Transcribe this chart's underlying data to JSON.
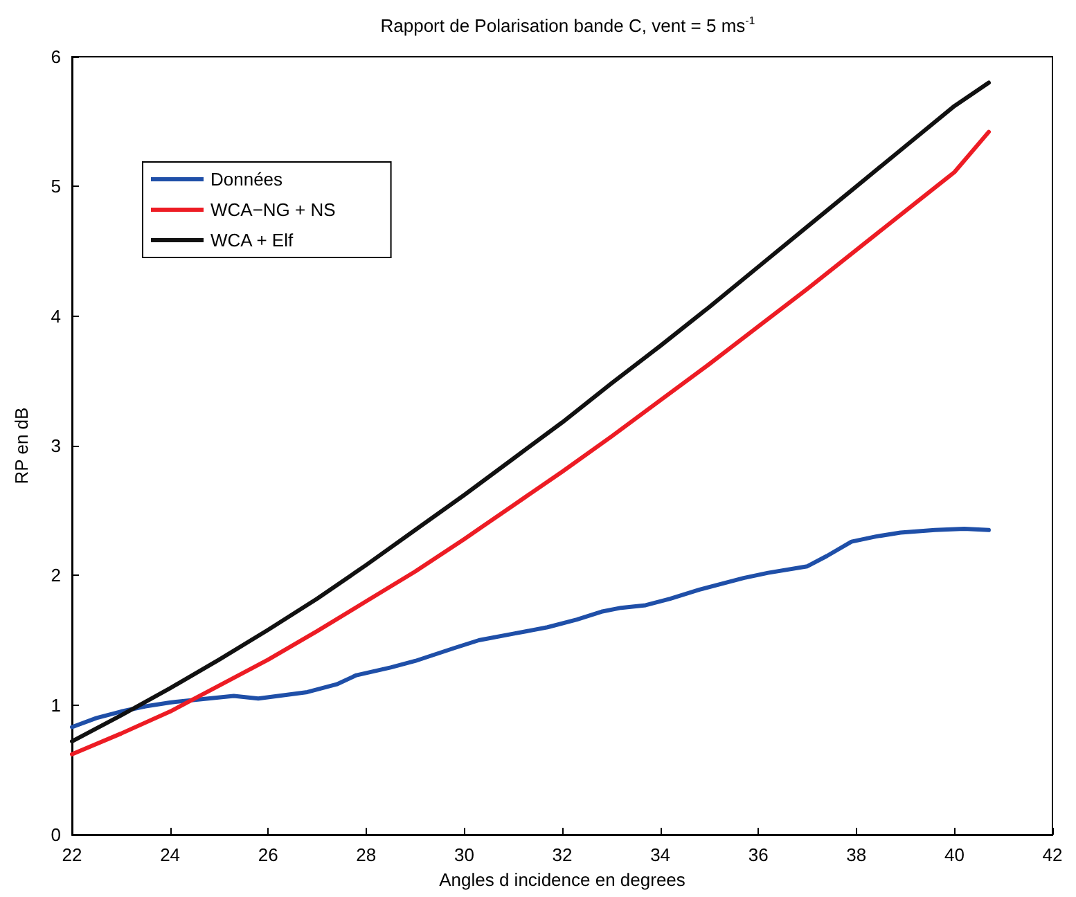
{
  "chart_data": {
    "type": "line",
    "title": "Rapport de Polarisation bande C, vent = 5 ms$^{-1}$",
    "xlabel": "Angles d incidence en degrees",
    "ylabel": "RP en dB",
    "xlim": [
      22,
      42
    ],
    "xticks": [
      22,
      24,
      26,
      28,
      30,
      32,
      34,
      36,
      38,
      40,
      42
    ],
    "ylim": [
      0,
      6
    ],
    "yticks": [
      0,
      1,
      2,
      3,
      4,
      5,
      6
    ],
    "grid": false,
    "legend": "top left",
    "marker": "none",
    "line_style": "solid",
    "series": [
      {
        "name": "Données",
        "color": "#1f4fa8",
        "x": [
          22,
          22.5,
          23,
          23.5,
          24,
          24.5,
          25.3,
          25.8,
          26.8,
          27.4,
          27.8,
          28.5,
          29,
          29.8,
          30.3,
          31,
          31.7,
          32.3,
          32.8,
          33.2,
          33.7,
          34.2,
          34.8,
          35.7,
          36.2,
          37,
          37.4,
          37.9,
          38.4,
          38.9,
          39.6,
          40.2,
          40.7
        ],
        "values": [
          0.83,
          0.9,
          0.95,
          0.99,
          1.02,
          1.04,
          1.07,
          1.05,
          1.1,
          1.16,
          1.23,
          1.29,
          1.34,
          1.44,
          1.5,
          1.55,
          1.6,
          1.66,
          1.72,
          1.75,
          1.77,
          1.82,
          1.89,
          1.98,
          2.02,
          2.07,
          2.15,
          2.26,
          2.3,
          2.33,
          2.35,
          2.36,
          2.35
        ]
      },
      {
        "name": "WCA−NG + NS",
        "color": "#ed1c24",
        "x": [
          22,
          23,
          24,
          25,
          26,
          27,
          28,
          29,
          30,
          31,
          32,
          33,
          34,
          35,
          36,
          37,
          38,
          39,
          40,
          40.7
        ],
        "values": [
          0.62,
          0.78,
          0.95,
          1.15,
          1.35,
          1.57,
          1.8,
          2.03,
          2.28,
          2.54,
          2.8,
          3.07,
          3.35,
          3.63,
          3.92,
          4.21,
          4.51,
          4.81,
          5.11,
          5.42
        ]
      },
      {
        "name": "WCA + Elf",
        "color": "#111111",
        "x": [
          22,
          23,
          24,
          25,
          26,
          27,
          28,
          29,
          30,
          31,
          32,
          33,
          34,
          35,
          36,
          37,
          38,
          39,
          40,
          40.7
        ],
        "values": [
          0.72,
          0.92,
          1.13,
          1.35,
          1.58,
          1.82,
          2.08,
          2.35,
          2.62,
          2.9,
          3.18,
          3.48,
          3.77,
          4.07,
          4.38,
          4.69,
          5.0,
          5.31,
          5.62,
          5.8
        ]
      }
    ]
  }
}
